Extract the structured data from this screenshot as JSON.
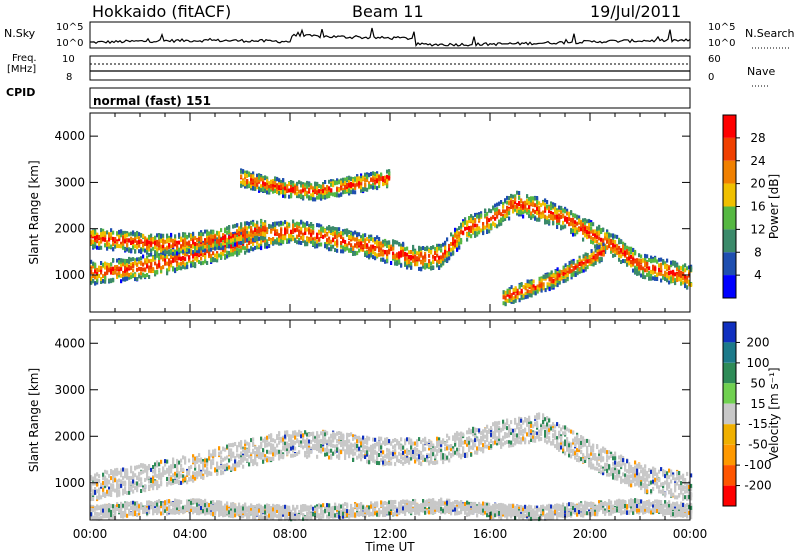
{
  "header": {
    "site": "Hokkaido (fitACF)",
    "beam": "Beam 11",
    "date": "19/Jul/2011"
  },
  "top_panels": {
    "nsky_label": "N.Sky",
    "nsearch_label": "N.Search",
    "noise_ticks": [
      "10^5",
      "10^0"
    ],
    "freq_label": "Freq.",
    "freq_unit": "[MHz]",
    "freq_ticks": [
      "10",
      "8"
    ],
    "nave_label": "Nave",
    "nave_ticks": [
      "60",
      "0"
    ],
    "cpid_label": "CPID",
    "cpid_value": "normal (fast) 151"
  },
  "colors": {
    "power": [
      "#0000ff",
      "#1f4fb0",
      "#3b8a6a",
      "#56b842",
      "#f0c000",
      "#f08000",
      "#f04000",
      "#ff0000"
    ],
    "velocity": [
      "#ff0000",
      "#ff5500",
      "#ff9900",
      "#f0b000",
      "#c8c8c8",
      "#70d050",
      "#2e8b57",
      "#1c7a8a",
      "#1030c0"
    ],
    "ground_scatter": "#c8c8c8"
  },
  "chart_data": [
    {
      "type": "heatmap",
      "name": "power",
      "title": "",
      "xlabel": "Time UT",
      "ylabel": "Slant Range [km]",
      "xlim": [
        "00:00",
        "24:00"
      ],
      "ylim": [
        200,
        4500
      ],
      "x_ticks": [
        "00:00",
        "04:00",
        "08:00",
        "12:00",
        "16:00",
        "20:00",
        "00:00"
      ],
      "y_ticks": [
        1000,
        2000,
        3000,
        4000
      ],
      "colorbar": {
        "label": "Power [dB]",
        "ticks": [
          4,
          8,
          12,
          16,
          20,
          24,
          28
        ],
        "range": [
          0,
          30
        ]
      },
      "bands": [
        {
          "t": [
            0,
            2,
            4,
            6,
            7,
            8,
            10,
            12,
            13,
            14,
            15,
            16,
            17,
            18,
            19,
            20,
            21,
            22,
            24
          ],
          "r": [
            1050,
            1150,
            1400,
            1700,
            1850,
            1950,
            1750,
            1500,
            1350,
            1400,
            2000,
            2200,
            2550,
            2400,
            2200,
            1900,
            1600,
            1200,
            950
          ],
          "w": 350
        },
        {
          "t": [
            0,
            1,
            2,
            3,
            4,
            5,
            6,
            7
          ],
          "r": [
            1800,
            1750,
            1700,
            1650,
            1700,
            1750,
            1900,
            2000
          ],
          "w": 300
        },
        {
          "t": [
            6,
            7,
            8,
            9,
            10,
            11,
            12
          ],
          "r": [
            3100,
            2950,
            2850,
            2800,
            2900,
            3000,
            3100
          ],
          "w": 250
        },
        {
          "t": [
            16.5,
            17.5,
            18.5,
            19.5,
            20.5
          ],
          "r": [
            500,
            700,
            900,
            1200,
            1500
          ],
          "w": 250
        }
      ]
    },
    {
      "type": "heatmap",
      "name": "velocity",
      "title": "",
      "xlabel": "Time UT",
      "ylabel": "Slant Range [km]",
      "xlim": [
        "00:00",
        "24:00"
      ],
      "ylim": [
        200,
        4500
      ],
      "x_ticks": [
        "00:00",
        "04:00",
        "08:00",
        "12:00",
        "16:00",
        "20:00",
        "00:00"
      ],
      "y_ticks": [
        1000,
        2000,
        3000,
        4000
      ],
      "colorbar": {
        "label": "Velocity [m s⁻¹]",
        "ticks": [
          200,
          100,
          50,
          15,
          -15,
          -50,
          -100,
          -200
        ],
        "range": [
          -250,
          250
        ]
      },
      "bands": [
        {
          "t": [
            0,
            2,
            4,
            6,
            8,
            10,
            12,
            14,
            16,
            18,
            20,
            22,
            24
          ],
          "r": [
            900,
            1100,
            1300,
            1600,
            1850,
            1800,
            1650,
            1700,
            2000,
            2200,
            1600,
            1100,
            900
          ],
          "w": 400
        },
        {
          "t": [
            0,
            2,
            4,
            6,
            8,
            10,
            12,
            14,
            16,
            18,
            20,
            22,
            24
          ],
          "r": [
            350,
            450,
            500,
            400,
            350,
            400,
            450,
            500,
            400,
            350,
            450,
            500,
            400
          ],
          "w": 200
        }
      ]
    }
  ]
}
